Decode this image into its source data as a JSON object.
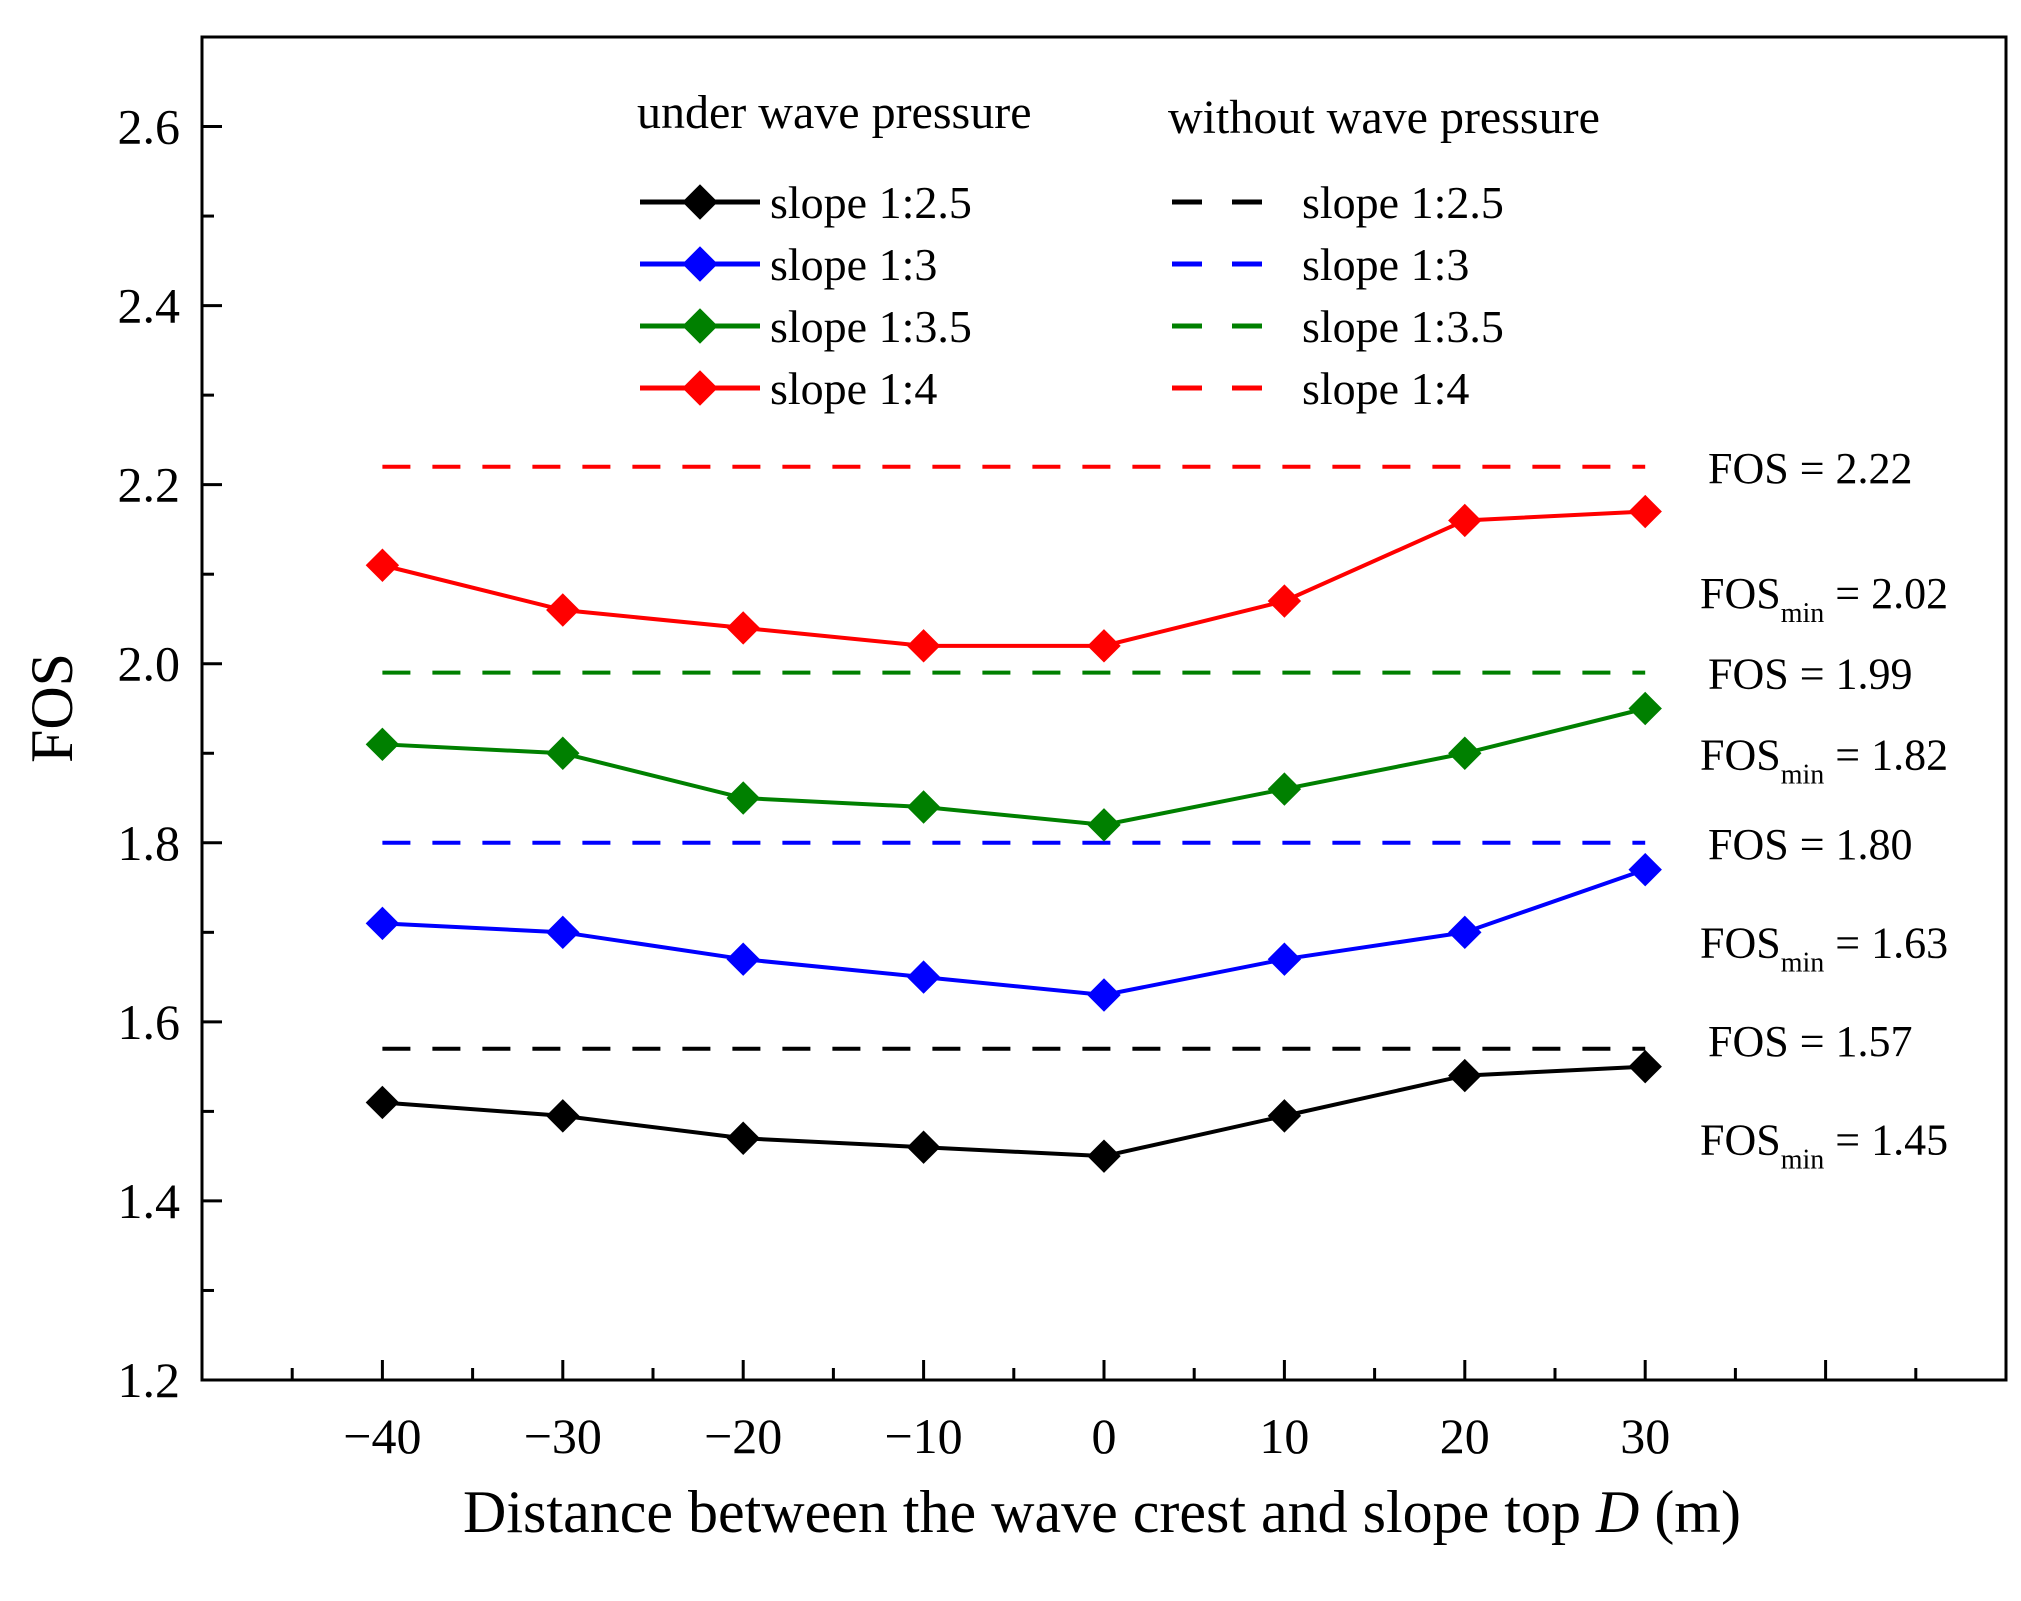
{
  "chart_data": {
    "type": "line",
    "xlabel_main": "Distance between the wave crest and slope top ",
    "xlabel_var": "D",
    "xlabel_unit": " (m)",
    "ylabel": "FOS",
    "xlim": [
      -50,
      50
    ],
    "ylim": [
      1.2,
      2.7
    ],
    "x_ticks": [
      -40,
      -30,
      -20,
      -10,
      0,
      10,
      20,
      30
    ],
    "x_tick_labels": [
      "−40",
      "−30",
      "−20",
      "−10",
      "0",
      "10",
      "20",
      "30"
    ],
    "y_ticks": [
      1.2,
      1.4,
      1.6,
      1.8,
      2.0,
      2.2,
      2.4,
      2.6
    ],
    "y_tick_labels": [
      "1.2",
      "1.4",
      "1.6",
      "1.8",
      "2.0",
      "2.2",
      "2.4",
      "2.6"
    ],
    "x": [
      -40,
      -30,
      -20,
      -10,
      0,
      10,
      20,
      30
    ],
    "legend": {
      "under_title": "under wave pressure",
      "without_title": "without wave pressure"
    },
    "series": [
      {
        "name": "slope 1:2.5",
        "color": "#000000",
        "values": [
          1.51,
          1.495,
          1.47,
          1.46,
          1.45,
          1.495,
          1.54,
          1.55
        ]
      },
      {
        "name": "slope 1:3",
        "color": "#0000ff",
        "values": [
          1.71,
          1.7,
          1.67,
          1.65,
          1.63,
          1.67,
          1.7,
          1.77
        ]
      },
      {
        "name": "slope 1:3.5",
        "color": "#008000",
        "values": [
          1.91,
          1.9,
          1.85,
          1.84,
          1.82,
          1.86,
          1.9,
          1.95
        ]
      },
      {
        "name": "slope 1:4",
        "color": "#ff0000",
        "values": [
          2.11,
          2.06,
          2.04,
          2.02,
          2.02,
          2.07,
          2.16,
          2.17
        ]
      }
    ],
    "reference_series": [
      {
        "name": "slope 1:2.5",
        "color": "#000000",
        "value": 1.57
      },
      {
        "name": "slope 1:3",
        "color": "#0000ff",
        "value": 1.8
      },
      {
        "name": "slope 1:3.5",
        "color": "#008000",
        "value": 1.99
      },
      {
        "name": "slope 1:4",
        "color": "#ff0000",
        "value": 2.22
      }
    ],
    "annotations": [
      {
        "kind": "fos",
        "main": "FOS",
        "sub": "",
        "eq": " = 2.22",
        "y": 2.22
      },
      {
        "kind": "fosmin",
        "main": "FOS",
        "sub": "min",
        "eq": " = 2.02",
        "y": 2.08
      },
      {
        "kind": "fos",
        "main": "FOS",
        "sub": "",
        "eq": " = 1.99",
        "y": 1.99
      },
      {
        "kind": "fosmin",
        "main": "FOS",
        "sub": "min",
        "eq": " = 1.82",
        "y": 1.9
      },
      {
        "kind": "fos",
        "main": "FOS",
        "sub": "",
        "eq": " = 1.80",
        "y": 1.8
      },
      {
        "kind": "fosmin",
        "main": "FOS",
        "sub": "min",
        "eq": " = 1.63",
        "y": 1.69
      },
      {
        "kind": "fos",
        "main": "FOS",
        "sub": "",
        "eq": " = 1.57",
        "y": 1.58
      },
      {
        "kind": "fosmin",
        "main": "FOS",
        "sub": "min",
        "eq": " = 1.45",
        "y": 1.47
      }
    ]
  }
}
